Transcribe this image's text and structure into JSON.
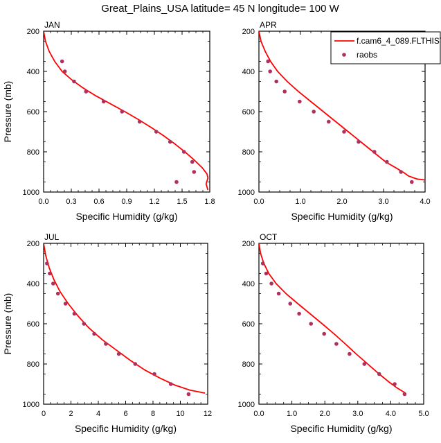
{
  "title": "Great_Plains_USA  latitude= 45 N longitude= 100 W",
  "colors": {
    "model": "#ff0000",
    "obs": "#b03060",
    "axis": "#000000"
  },
  "legend": {
    "model_label": "f.cam6_4_089.FLTHIST",
    "obs_label": "raobs"
  },
  "chart_data": [
    {
      "type": "line",
      "panel": "JAN",
      "xlabel": "Specific Humidity (g/kg)",
      "ylabel": "Pressure (mb)",
      "xlim": [
        0,
        1.8
      ],
      "ylim": [
        200,
        1000
      ],
      "y_reversed": true,
      "xticks": [
        0.0,
        0.3,
        0.6,
        0.9,
        1.2,
        1.5,
        1.8
      ],
      "xtick_labels": [
        "0.0",
        "0.3",
        "0.6",
        "0.9",
        "1.2",
        "1.5",
        "1.8"
      ],
      "yticks": [
        200,
        400,
        600,
        800,
        1000
      ],
      "ytick_labels": [
        "200",
        "400",
        "600",
        "800",
        "1000"
      ],
      "series": [
        {
          "name": "f.cam6_4_089.FLTHIST",
          "style": "line",
          "x": [
            0.0,
            0.02,
            0.06,
            0.12,
            0.2,
            0.3,
            0.42,
            0.56,
            0.72,
            0.88,
            1.03,
            1.17,
            1.3,
            1.42,
            1.53,
            1.63,
            1.72,
            1.77,
            1.78,
            1.76,
            1.78
          ],
          "y": [
            200,
            250,
            300,
            350,
            400,
            440,
            480,
            520,
            560,
            600,
            640,
            680,
            720,
            760,
            800,
            840,
            880,
            910,
            930,
            960,
            990
          ]
        },
        {
          "name": "raobs",
          "style": "points",
          "x": [
            0.2,
            0.23,
            0.33,
            0.46,
            0.65,
            0.85,
            1.04,
            1.22,
            1.37,
            1.52,
            1.61,
            1.63,
            1.44
          ],
          "y": [
            350,
            400,
            450,
            500,
            550,
            600,
            650,
            700,
            750,
            800,
            850,
            900,
            950
          ]
        }
      ]
    },
    {
      "type": "line",
      "panel": "APR",
      "xlabel": "Specific Humidity (g/kg)",
      "ylabel": "",
      "xlim": [
        0,
        4.0
      ],
      "ylim": [
        200,
        1000
      ],
      "y_reversed": true,
      "xticks": [
        0.0,
        1.0,
        2.0,
        3.0,
        4.0
      ],
      "xtick_labels": [
        "0.0",
        "1.0",
        "2.0",
        "3.0",
        "4.0"
      ],
      "yticks": [
        200,
        400,
        600,
        800,
        1000
      ],
      "ytick_labels": [
        "200",
        "400",
        "600",
        "800",
        "1000"
      ],
      "series": [
        {
          "name": "f.cam6_4_089.FLTHIST",
          "style": "line",
          "x": [
            0.0,
            0.05,
            0.15,
            0.28,
            0.45,
            0.68,
            0.95,
            1.25,
            1.55,
            1.85,
            2.15,
            2.45,
            2.75,
            3.05,
            3.3,
            3.5,
            3.6,
            3.8,
            4.0
          ],
          "y": [
            200,
            250,
            300,
            350,
            400,
            450,
            500,
            550,
            600,
            650,
            700,
            750,
            800,
            850,
            880,
            905,
            920,
            935,
            940
          ]
        },
        {
          "name": "raobs",
          "style": "points",
          "x": [
            0.22,
            0.27,
            0.42,
            0.62,
            0.98,
            1.32,
            1.68,
            2.05,
            2.4,
            2.78,
            3.08,
            3.42,
            3.68
          ],
          "y": [
            350,
            400,
            450,
            500,
            550,
            600,
            650,
            700,
            750,
            800,
            850,
            900,
            950
          ]
        }
      ]
    },
    {
      "type": "line",
      "panel": "JUL",
      "xlabel": "Specific Humidity (g/kg)",
      "ylabel": "Pressure (mb)",
      "xlim": [
        0,
        12
      ],
      "ylim": [
        200,
        1000
      ],
      "y_reversed": true,
      "xticks": [
        0,
        2,
        4,
        6,
        8,
        10,
        12
      ],
      "xtick_labels": [
        "0",
        "2",
        "4",
        "6",
        "8",
        "10",
        "12"
      ],
      "yticks": [
        200,
        400,
        600,
        800,
        1000
      ],
      "ytick_labels": [
        "200",
        "400",
        "600",
        "800",
        "1000"
      ],
      "series": [
        {
          "name": "f.cam6_4_089.FLTHIST",
          "style": "line",
          "x": [
            0.0,
            0.15,
            0.4,
            0.75,
            1.2,
            1.8,
            2.5,
            3.3,
            4.3,
            5.3,
            6.3,
            7.4,
            8.5,
            9.6,
            10.7,
            11.8
          ],
          "y": [
            200,
            260,
            320,
            380,
            440,
            500,
            560,
            620,
            680,
            730,
            780,
            830,
            870,
            905,
            930,
            945
          ]
        },
        {
          "name": "raobs",
          "style": "points",
          "x": [
            0.25,
            0.45,
            0.7,
            1.05,
            1.6,
            2.25,
            2.95,
            3.7,
            4.55,
            5.5,
            6.7,
            8.1,
            9.3,
            10.6
          ],
          "y": [
            300,
            350,
            400,
            450,
            500,
            550,
            600,
            650,
            700,
            750,
            800,
            850,
            900,
            950
          ]
        }
      ]
    },
    {
      "type": "line",
      "panel": "OCT",
      "xlabel": "Specific Humidity (g/kg)",
      "ylabel": "",
      "xlim": [
        0,
        5.0
      ],
      "ylim": [
        200,
        1000
      ],
      "y_reversed": true,
      "xticks": [
        0.0,
        1.0,
        2.0,
        3.0,
        4.0,
        5.0
      ],
      "xtick_labels": [
        "0.0",
        "1.0",
        "2.0",
        "3.0",
        "4.0",
        "5.0"
      ],
      "yticks": [
        200,
        400,
        600,
        800,
        1000
      ],
      "ytick_labels": [
        "200",
        "400",
        "600",
        "800",
        "1000"
      ],
      "series": [
        {
          "name": "f.cam6_4_089.FLTHIST",
          "style": "line",
          "x": [
            0.0,
            0.05,
            0.15,
            0.3,
            0.52,
            0.82,
            1.18,
            1.55,
            1.92,
            2.28,
            2.62,
            2.95,
            3.3,
            3.65,
            3.95,
            4.2,
            4.4,
            4.45
          ],
          "y": [
            200,
            250,
            300,
            350,
            400,
            450,
            500,
            550,
            600,
            650,
            700,
            750,
            800,
            850,
            890,
            920,
            940,
            945
          ]
        },
        {
          "name": "raobs",
          "style": "points",
          "x": [
            0.12,
            0.22,
            0.38,
            0.6,
            0.95,
            1.22,
            1.58,
            1.98,
            2.35,
            2.75,
            3.2,
            3.65,
            4.12,
            4.42
          ],
          "y": [
            300,
            350,
            400,
            450,
            500,
            550,
            600,
            650,
            700,
            750,
            800,
            850,
            900,
            950
          ]
        }
      ]
    }
  ]
}
